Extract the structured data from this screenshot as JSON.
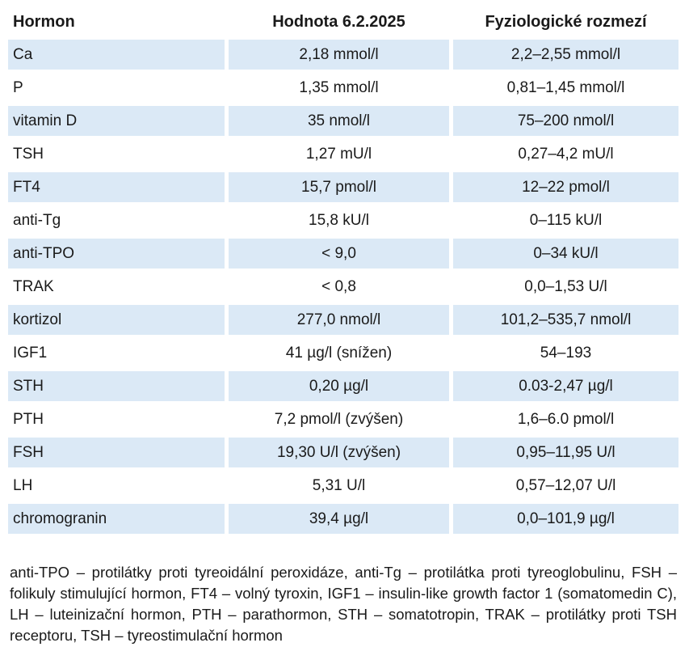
{
  "table": {
    "headers": [
      "Hormon",
      "Hodnota 6.2.2025",
      "Fyziologické rozmezí"
    ],
    "rows": [
      [
        "Ca",
        "2,18 mmol/l",
        "2,2–2,55 mmol/l"
      ],
      [
        "P",
        "1,35 mmol/l",
        "0,81–1,45 mmol/l"
      ],
      [
        "vitamin D",
        "35 nmol/l",
        "75–200 nmol/l"
      ],
      [
        "TSH",
        "1,27 mU/l",
        "0,27–4,2 mU/l"
      ],
      [
        "FT4",
        "15,7 pmol/l",
        "12–22 pmol/l"
      ],
      [
        "anti-Tg",
        "15,8 kU/l",
        "0–115 kU/l"
      ],
      [
        "anti-TPO",
        "< 9,0",
        "0–34 kU/l"
      ],
      [
        "TRAK",
        "< 0,8",
        "0,0–1,53 U/l"
      ],
      [
        "kortizol",
        "277,0 nmol/l",
        "101,2–535,7 nmol/l"
      ],
      [
        "IGF1",
        "41 µg/l (snížen)",
        "54–193"
      ],
      [
        "STH",
        "0,20 µg/l",
        "0.03-2,47 µg/l"
      ],
      [
        "PTH",
        "7,2 pmol/l (zvýšen)",
        "1,6–6.0 pmol/l"
      ],
      [
        "FSH",
        "19,30 U/l (zvýšen)",
        "0,95–11,95 U/l"
      ],
      [
        "LH",
        "5,31 U/l",
        "0,57–12,07 U/l"
      ],
      [
        "chromogranin",
        "39,4 µg/l",
        "0,0–101,9 µg/l"
      ]
    ]
  },
  "footnote": "anti-TPO – protilátky proti tyreoidální peroxidáze, anti-Tg – protilátka proti tyreoglobulinu, FSH – folikuly stimulující hormon, FT4 – volný tyroxin, IGF1 – insulin-like growth factor 1 (somatomedin C), LH – luteinizační hormon, PTH – parathormon, STH – somatotropin, TRAK – protilátky proti TSH receptoru, TSH – tyreostimulační hormon",
  "colors": {
    "row_band": "#dbe9f6",
    "text": "#1a1a1a"
  }
}
